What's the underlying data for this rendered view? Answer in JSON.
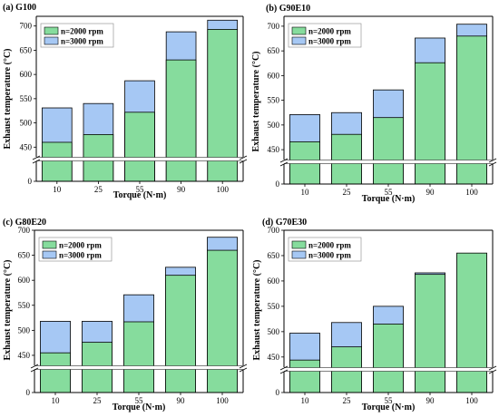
{
  "colors": {
    "rpm2000": "#86DC9D",
    "rpm3000": "#A6C8F4",
    "axis": "#000000"
  },
  "chart_data": [
    {
      "type": "bar",
      "title": "(a) G100",
      "xlabel": "Torque (N·m)",
      "ylabel": "Exhaust temperature (°C)",
      "categories": [
        "10",
        "25",
        "55",
        "90",
        "100"
      ],
      "series": [
        {
          "name": "n=2000 rpm",
          "values": [
            460,
            476,
            522,
            630,
            693
          ]
        },
        {
          "name": "n=3000 rpm",
          "values": [
            531,
            540,
            587,
            688,
            712
          ]
        }
      ],
      "yticks": [
        "0",
        "450",
        "500",
        "550",
        "600",
        "650",
        "700"
      ],
      "ylim": [
        430,
        720
      ],
      "axis_break": true,
      "legend_position": "top-left"
    },
    {
      "type": "bar",
      "title": "(b) G90E10",
      "xlabel": "Torque (N·m)",
      "ylabel": "Exhaust temperature (°C)",
      "categories": [
        "10",
        "25",
        "55",
        "90",
        "100"
      ],
      "series": [
        {
          "name": "n=2000 rpm",
          "values": [
            466,
            481,
            515,
            626,
            680
          ]
        },
        {
          "name": "n=3000 rpm",
          "values": [
            521,
            525,
            571,
            676,
            704
          ]
        }
      ],
      "yticks": [
        "0",
        "450",
        "500",
        "550",
        "600",
        "650",
        "700"
      ],
      "ylim": [
        430,
        720
      ],
      "axis_break": true,
      "legend_position": "top-left"
    },
    {
      "type": "bar",
      "title": "(c) G80E20",
      "xlabel": "Torque (N·m)",
      "ylabel": "Exhaust temperature (°C)",
      "categories": [
        "10",
        "25",
        "55",
        "90",
        "100"
      ],
      "series": [
        {
          "name": "n=2000 rpm",
          "values": [
            455,
            476,
            517,
            610,
            660
          ]
        },
        {
          "name": "n=3000 rpm",
          "values": [
            518,
            518,
            571,
            626,
            686
          ]
        }
      ],
      "yticks": [
        "0",
        "450",
        "500",
        "550",
        "600",
        "650",
        "700"
      ],
      "ylim": [
        430,
        700
      ],
      "axis_break": true,
      "legend_position": "top-left"
    },
    {
      "type": "bar",
      "title": "(d) G70E30",
      "xlabel": "Torque (N·m)",
      "ylabel": "Exhaust temperature (°C)",
      "categories": [
        "10",
        "25",
        "55",
        "90",
        "100"
      ],
      "series": [
        {
          "name": "n=2000 rpm",
          "values": [
            444,
            470,
            515,
            613,
            655
          ]
        },
        {
          "name": "n=3000 rpm",
          "values": [
            497,
            518,
            550,
            616,
            652
          ]
        }
      ],
      "yticks": [
        "0",
        "450",
        "500",
        "550",
        "600",
        "650",
        "700"
      ],
      "ylim": [
        430,
        700
      ],
      "axis_break": true,
      "legend_position": "top-left"
    }
  ]
}
